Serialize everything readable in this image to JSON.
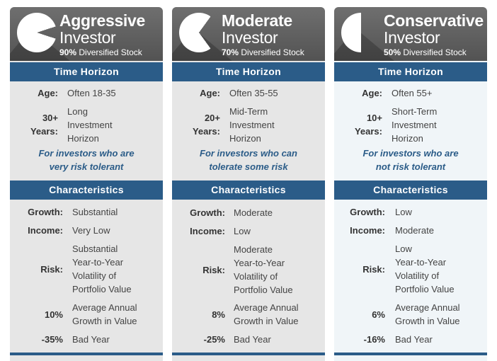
{
  "section_time_horizon": "Time Horizon",
  "section_characteristics": "Characteristics",
  "cards": [
    {
      "title_line1": "Aggressive",
      "title_line2": "Investor",
      "stock_pct": "90%",
      "stock_label": "Diversified Stock",
      "pie_stock_fraction": 0.9,
      "age_label": "Age:",
      "age_value": "Often 18-35",
      "years_num": "30+",
      "years_label": "Years:",
      "horizon_lines": [
        "Long",
        "Investment",
        "Horizon"
      ],
      "risk_note_lines": [
        "For investors who are",
        "very risk tolerant"
      ],
      "growth_label": "Growth:",
      "growth_value": "Substantial",
      "income_label": "Income:",
      "income_value": "Very Low",
      "risk_label": "Risk:",
      "risk_lines": [
        "Substantial",
        "Year-to-Year",
        "Volatility of",
        "Portfolio Value"
      ],
      "avg_num": "10%",
      "avg_lines": [
        "Average Annual",
        "Growth in Value"
      ],
      "bad_num": "-35%",
      "bad_label": "Bad Year"
    },
    {
      "title_line1": "Moderate",
      "title_line2": "Investor",
      "stock_pct": "70%",
      "stock_label": "Diversified Stock",
      "pie_stock_fraction": 0.7,
      "age_label": "Age:",
      "age_value": "Often 35-55",
      "years_num": "20+",
      "years_label": "Years:",
      "horizon_lines": [
        "Mid-Term",
        "Investment",
        "Horizon"
      ],
      "risk_note_lines": [
        "For investors who can",
        "tolerate some risk"
      ],
      "growth_label": "Growth:",
      "growth_value": "Moderate",
      "income_label": "Income:",
      "income_value": "Low",
      "risk_label": "Risk:",
      "risk_lines": [
        "Moderate",
        "Year-to-Year",
        "Volatility of",
        "Portfolio Value"
      ],
      "avg_num": "8%",
      "avg_lines": [
        "Average Annual",
        "Growth in Value"
      ],
      "bad_num": "-25%",
      "bad_label": "Bad Year"
    },
    {
      "title_line1": "Conservative",
      "title_line2": "Investor",
      "stock_pct": "50%",
      "stock_label": "Diversified Stock",
      "pie_stock_fraction": 0.5,
      "age_label": "Age:",
      "age_value": "Often 55+",
      "years_num": "10+",
      "years_label": "Years:",
      "horizon_lines": [
        "Short-Term",
        "Investment",
        "Horizon"
      ],
      "risk_note_lines": [
        "For investors who are",
        "not risk tolerant"
      ],
      "growth_label": "Growth:",
      "growth_value": "Low",
      "income_label": "Income:",
      "income_value": "Moderate",
      "risk_label": "Risk:",
      "risk_lines": [
        "Low",
        "Year-to-Year",
        "Volatility of",
        "Portfolio Value"
      ],
      "avg_num": "6%",
      "avg_lines": [
        "Average Annual",
        "Growth in Value"
      ],
      "bad_num": "-16%",
      "bad_label": "Bad Year"
    }
  ],
  "colors": {
    "header_gray": "#5f5f5f",
    "band_blue": "#2b5c88",
    "note_blue": "#2b5c88",
    "card_gray": "#e6e6e6",
    "card_light": "#f0f5f8"
  }
}
